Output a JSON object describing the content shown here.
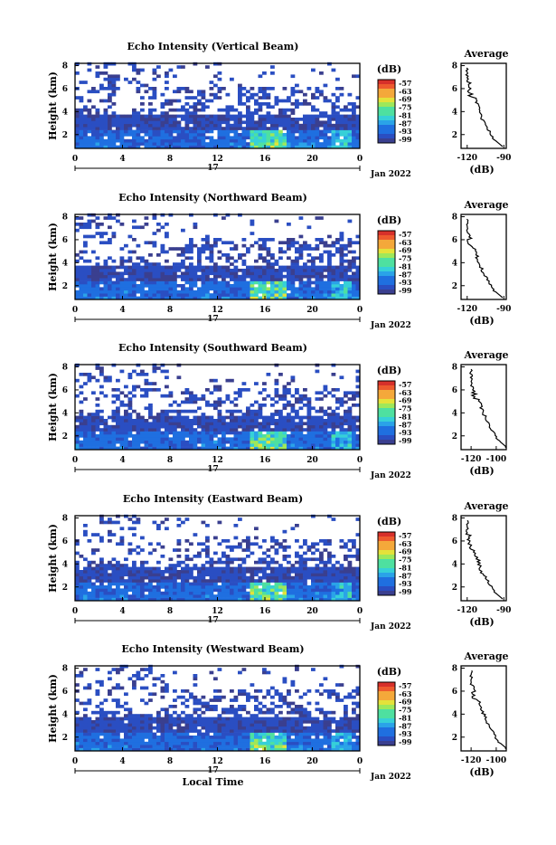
{
  "colors": {
    "background": "#ffffff",
    "colorscale": [
      "#3a3f8f",
      "#2a4ec2",
      "#1f6fe0",
      "#2aa3e8",
      "#36d0d8",
      "#4ee0a0",
      "#9ee85a",
      "#e4e23a",
      "#f4a83a",
      "#ee5a2e",
      "#d7302a"
    ]
  },
  "chart_data": [
    {
      "type": "heatmap",
      "title": "Echo Intensity (Vertical Beam)",
      "ylabel": "Height (km)",
      "x_ticks": [
        "0",
        "4",
        "8",
        "12",
        "16",
        "20",
        "0"
      ],
      "x_date_label": "17",
      "x_suffix": "Jan 2022",
      "y_ticks": [
        "2",
        "4",
        "6",
        "8"
      ],
      "colorbar_unit": "(dB)",
      "colorbar_ticks": [
        "-57",
        "-63",
        "-69",
        "-75",
        "-81",
        "-87",
        "-93",
        "-99"
      ],
      "average": {
        "title": "Average",
        "xlabel": "(dB)",
        "x_ticks": [
          "-120",
          "-90"
        ],
        "x_range": [
          -125,
          -88
        ],
        "y_ticks": [
          "2",
          "4",
          "6",
          "8"
        ]
      }
    },
    {
      "type": "heatmap",
      "title": "Echo Intensity (Northward Beam)",
      "ylabel": "Height (km)",
      "x_ticks": [
        "0",
        "4",
        "8",
        "12",
        "16",
        "20",
        "0"
      ],
      "x_date_label": "17",
      "x_suffix": "Jan 2022",
      "y_ticks": [
        "2",
        "4",
        "6",
        "8"
      ],
      "colorbar_unit": "(dB)",
      "colorbar_ticks": [
        "-57",
        "-63",
        "-69",
        "-75",
        "-81",
        "-87",
        "-93",
        "-99"
      ],
      "average": {
        "title": "Average",
        "xlabel": "(dB)",
        "x_ticks": [
          "-120",
          "-90"
        ],
        "x_range": [
          -125,
          -88
        ],
        "y_ticks": [
          "2",
          "4",
          "6",
          "8"
        ]
      }
    },
    {
      "type": "heatmap",
      "title": "Echo Intensity (Southward Beam)",
      "ylabel": "Height (km)",
      "x_ticks": [
        "0",
        "4",
        "8",
        "12",
        "16",
        "20",
        "0"
      ],
      "x_date_label": "17",
      "x_suffix": "Jan 2022",
      "y_ticks": [
        "2",
        "4",
        "6",
        "8"
      ],
      "colorbar_unit": "(dB)",
      "colorbar_ticks": [
        "-57",
        "-63",
        "-69",
        "-75",
        "-81",
        "-87",
        "-93",
        "-99"
      ],
      "average": {
        "title": "Average",
        "xlabel": "(dB)",
        "x_ticks": [
          "-120",
          "-100"
        ],
        "x_range": [
          -128,
          -92
        ],
        "y_ticks": [
          "2",
          "4",
          "6",
          "8"
        ]
      }
    },
    {
      "type": "heatmap",
      "title": "Echo Intensity (Eastward Beam)",
      "ylabel": "Height (km)",
      "x_ticks": [
        "0",
        "4",
        "8",
        "12",
        "16",
        "20",
        "0"
      ],
      "x_date_label": "17",
      "x_suffix": "Jan 2022",
      "y_ticks": [
        "2",
        "4",
        "6",
        "8"
      ],
      "colorbar_unit": "(dB)",
      "colorbar_ticks": [
        "-57",
        "-63",
        "-69",
        "-75",
        "-81",
        "-87",
        "-93",
        "-99"
      ],
      "average": {
        "title": "Average",
        "xlabel": "(dB)",
        "x_ticks": [
          "-120",
          "-90"
        ],
        "x_range": [
          -125,
          -88
        ],
        "y_ticks": [
          "2",
          "4",
          "6",
          "8"
        ]
      }
    },
    {
      "type": "heatmap",
      "title": "Echo Intensity (Westward Beam)",
      "ylabel": "Height (km)",
      "xlabel": "Local Time",
      "x_ticks": [
        "0",
        "4",
        "8",
        "12",
        "16",
        "20",
        "0"
      ],
      "x_date_label": "17",
      "x_suffix": "Jan 2022",
      "y_ticks": [
        "2",
        "4",
        "6",
        "8"
      ],
      "colorbar_unit": "(dB)",
      "colorbar_ticks": [
        "-57",
        "-63",
        "-69",
        "-75",
        "-81",
        "-87",
        "-93",
        "-99"
      ],
      "average": {
        "title": "Average",
        "xlabel": "(dB)",
        "x_ticks": [
          "-120",
          "-100"
        ],
        "x_range": [
          -128,
          -92
        ],
        "y_ticks": [
          "2",
          "4",
          "6",
          "8"
        ]
      }
    }
  ]
}
